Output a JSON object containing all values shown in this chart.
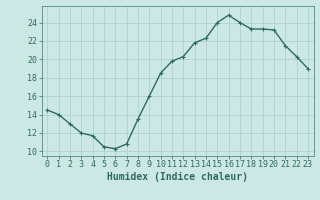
{
  "x": [
    0,
    1,
    2,
    3,
    4,
    5,
    6,
    7,
    8,
    9,
    10,
    11,
    12,
    13,
    14,
    15,
    16,
    17,
    18,
    19,
    20,
    21,
    22,
    23
  ],
  "y": [
    14.5,
    14.0,
    13.0,
    12.0,
    11.7,
    10.5,
    10.3,
    10.8,
    13.5,
    16.0,
    18.5,
    19.8,
    20.3,
    21.8,
    22.3,
    24.0,
    24.8,
    24.0,
    23.3,
    23.3,
    23.2,
    21.5,
    20.3,
    19.0
  ],
  "line_color": "#2e6b5e",
  "marker": "+",
  "marker_size": 3,
  "marker_linewidth": 0.8,
  "bg_color": "#cce8e4",
  "grid_color": "#aacfcb",
  "xlabel": "Humidex (Indice chaleur)",
  "xlabel_fontsize": 7,
  "tick_fontsize": 6,
  "ylim": [
    9.5,
    25.8
  ],
  "yticks": [
    10,
    12,
    14,
    16,
    18,
    20,
    22,
    24
  ],
  "xticks": [
    0,
    1,
    2,
    3,
    4,
    5,
    6,
    7,
    8,
    9,
    10,
    11,
    12,
    13,
    14,
    15,
    16,
    17,
    18,
    19,
    20,
    21,
    22,
    23
  ],
  "xlim": [
    -0.5,
    23.5
  ],
  "line_width": 1.0,
  "spine_color": "#3a7a6a"
}
